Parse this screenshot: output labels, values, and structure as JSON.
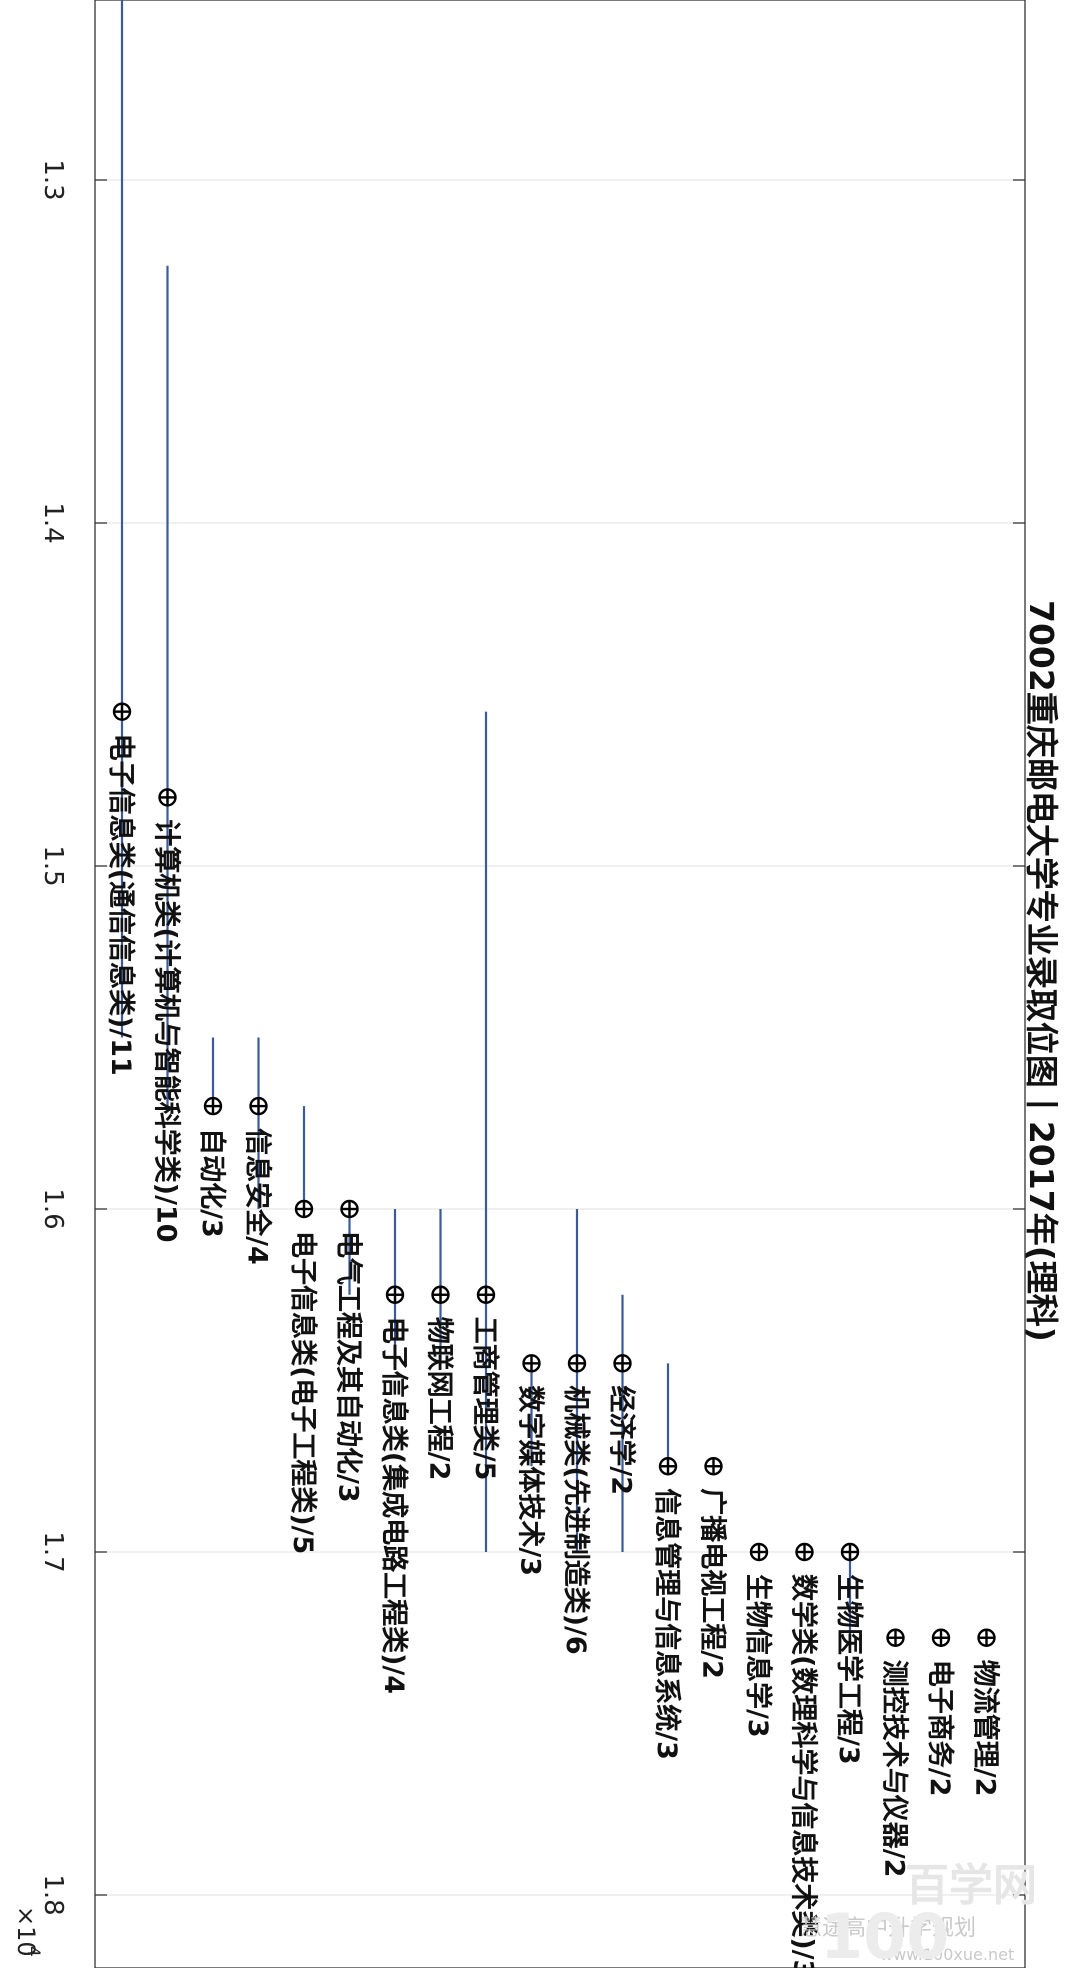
{
  "chart_data": {
    "type": "scatter",
    "title": "7002重庆邮电大学专业录取位图丨2017年(理科)",
    "axis_exponent_label": "×10",
    "axis_exponent_power": "4",
    "rank_axis": {
      "range": [
        12600,
        18000
      ],
      "ticks": [
        13000,
        14000,
        15000,
        16000,
        17000,
        18000
      ],
      "tick_labels": [
        "1.3",
        "1.4",
        "1.5",
        "1.6",
        "1.7",
        "1.8"
      ],
      "grid": true
    },
    "majors": [
      {
        "label": "电子信息类(通信信息类)/11",
        "median": 14550,
        "min": 12420,
        "max": 15500
      },
      {
        "label": "计算机类(计算机与智能科学类)/10",
        "median": 14800,
        "min": 13250,
        "max": 15700
      },
      {
        "label": "自动化/3",
        "median": 15700,
        "min": 15500,
        "max": 15700
      },
      {
        "label": "信息安全/4",
        "median": 15700,
        "min": 15500,
        "max": 16000
      },
      {
        "label": "电子信息类(电子工程类)/5",
        "median": 16000,
        "min": 15700,
        "max": 16000
      },
      {
        "label": "电气工程及其自动化/3",
        "median": 16000,
        "min": 16000,
        "max": 16250
      },
      {
        "label": "电子信息类(集成电路工程类)/4",
        "median": 16250,
        "min": 16000,
        "max": 16450
      },
      {
        "label": "物联网工程/2",
        "median": 16250,
        "min": 16000,
        "max": 16450
      },
      {
        "label": "工商管理类/5",
        "median": 16250,
        "min": 14550,
        "max": 17000
      },
      {
        "label": "数字媒体技术/3",
        "median": 16450,
        "min": 16450,
        "max": 16750
      },
      {
        "label": "机械类(先进制造类)/6",
        "median": 16450,
        "min": 16000,
        "max": 17000
      },
      {
        "label": "经济学/2",
        "median": 16450,
        "min": 16250,
        "max": 17000
      },
      {
        "label": "信息管理与信息系统/3",
        "median": 16750,
        "min": 16450,
        "max": 16750
      },
      {
        "label": "广播电视工程/2",
        "median": 16750,
        "min": 16750,
        "max": 16750
      },
      {
        "label": "生物信息学/3",
        "median": 17000,
        "min": 17000,
        "max": 17000
      },
      {
        "label": "数学类(数理科学与信息技术类)/3",
        "median": 17000,
        "min": 17000,
        "max": 17000
      },
      {
        "label": "生物医学工程/3",
        "median": 17000,
        "min": 17000,
        "max": 17250
      },
      {
        "label": "测控技术与仪器/2",
        "median": 17250,
        "min": 17250,
        "max": 17250
      },
      {
        "label": "电子商务/2",
        "median": 17250,
        "min": 17250,
        "max": 17250
      },
      {
        "label": "物流管理/2",
        "median": 17250,
        "min": 17250,
        "max": 17250
      }
    ]
  },
  "watermark": {
    "brand_text": "百学网",
    "wechat_text": "慧途高中升学规划",
    "url_text": "www.100xue.net",
    "logo_text": "100"
  }
}
